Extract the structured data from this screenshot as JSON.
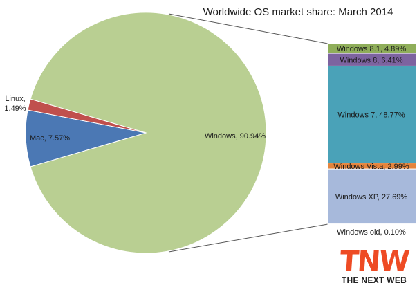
{
  "chart_data": {
    "type": "pie",
    "title": "Worldwide OS market share: March 2014",
    "slices": [
      {
        "name": "Windows",
        "value": 90.94,
        "label": "Windows, 90.94%",
        "color": "#b9cf92"
      },
      {
        "name": "Mac",
        "value": 7.57,
        "label": "Mac, 7.57%",
        "color": "#4b78b4"
      },
      {
        "name": "Linux",
        "value": 1.49,
        "label": "Linux,\n1.49%",
        "color": "#c0504d"
      }
    ],
    "breakdown": {
      "type": "stacked-bar",
      "of": "Windows",
      "segments": [
        {
          "name": "Windows 8.1",
          "value": 4.89,
          "label": "Windows 8.1, 4.89%",
          "color": "#8fae5a"
        },
        {
          "name": "Windows 8",
          "value": 6.41,
          "label": "Windows 8, 6.41%",
          "color": "#7d63a0"
        },
        {
          "name": "Windows 7",
          "value": 48.77,
          "label": "Windows 7, 48.77%",
          "color": "#4aa2b8"
        },
        {
          "name": "Windows Vista",
          "value": 2.99,
          "label": "Windows Vista, 2.99%",
          "color": "#e4843c"
        },
        {
          "name": "Windows XP",
          "value": 27.69,
          "label": "Windows XP, 27.69%",
          "color": "#a7b9db"
        },
        {
          "name": "Windows old",
          "value": 0.1,
          "label": "Windows old, 0.10%",
          "color": "#3d3d3d"
        }
      ]
    }
  },
  "logo": {
    "word": "TNW",
    "tagline": "THE NEXT WEB",
    "color": "#ee4b24"
  }
}
